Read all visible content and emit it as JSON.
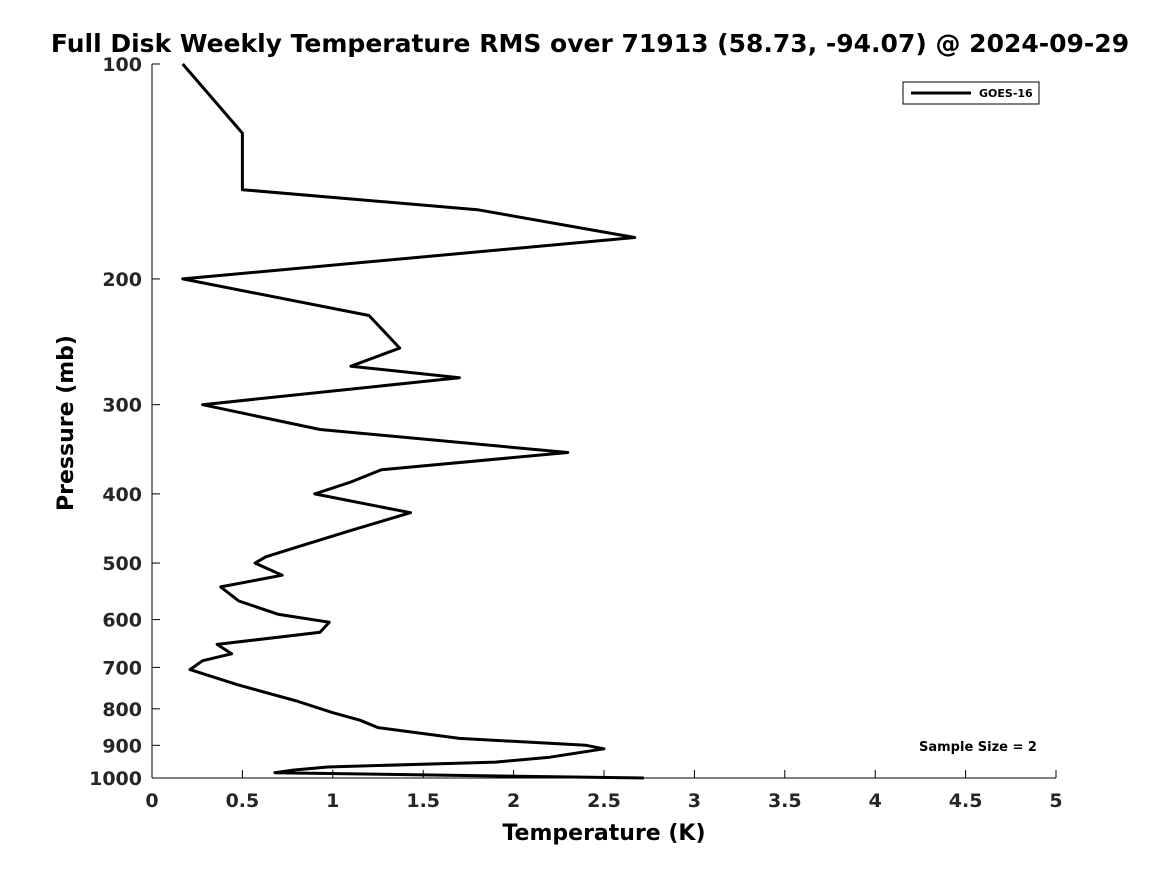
{
  "chart_data": {
    "type": "line",
    "title": "Full Disk Weekly Temperature RMS over 71913 (58.73, -94.07) @ 2024-09-29",
    "xlabel": "Temperature (K)",
    "ylabel": "Pressure (mb)",
    "xlim": [
      0,
      5
    ],
    "ylim": [
      1000,
      100
    ],
    "y_scale": "log",
    "y_reversed": true,
    "x_ticks": [
      "0",
      "0.5",
      "1",
      "1.5",
      "2",
      "2.5",
      "3",
      "3.5",
      "4",
      "4.5",
      "5"
    ],
    "y_ticks": [
      "100",
      "200",
      "300",
      "400",
      "500",
      "600",
      "700",
      "800",
      "900",
      "1000"
    ],
    "grid": false,
    "legend": {
      "position": "top-right",
      "entries": [
        "GOES-16"
      ]
    },
    "annotation": "Sample Size = 2",
    "series": [
      {
        "name": "GOES-16",
        "color": "#000000",
        "points": [
          [
            0.17,
            100
          ],
          [
            0.5,
            125
          ],
          [
            0.5,
            150
          ],
          [
            1.8,
            160
          ],
          [
            2.67,
            175
          ],
          [
            0.17,
            200
          ],
          [
            1.2,
            225
          ],
          [
            1.37,
            250
          ],
          [
            1.1,
            265
          ],
          [
            1.7,
            275
          ],
          [
            0.28,
            300
          ],
          [
            0.93,
            325
          ],
          [
            2.3,
            350
          ],
          [
            1.27,
            370
          ],
          [
            1.1,
            385
          ],
          [
            0.9,
            400
          ],
          [
            1.43,
            425
          ],
          [
            1.1,
            450
          ],
          [
            0.8,
            475
          ],
          [
            0.63,
            490
          ],
          [
            0.57,
            500
          ],
          [
            0.72,
            520
          ],
          [
            0.38,
            540
          ],
          [
            0.48,
            565
          ],
          [
            0.7,
            590
          ],
          [
            0.98,
            605
          ],
          [
            0.93,
            625
          ],
          [
            0.36,
            650
          ],
          [
            0.44,
            670
          ],
          [
            0.28,
            685
          ],
          [
            0.21,
            705
          ],
          [
            0.47,
            740
          ],
          [
            0.8,
            780
          ],
          [
            1.0,
            810
          ],
          [
            1.15,
            830
          ],
          [
            1.25,
            850
          ],
          [
            1.7,
            880
          ],
          [
            2.4,
            900
          ],
          [
            2.5,
            910
          ],
          [
            2.2,
            935
          ],
          [
            1.9,
            950
          ],
          [
            0.97,
            965
          ],
          [
            0.78,
            975
          ],
          [
            0.68,
            983
          ],
          [
            1.5,
            990
          ],
          [
            2.72,
            1000
          ]
        ]
      }
    ]
  }
}
